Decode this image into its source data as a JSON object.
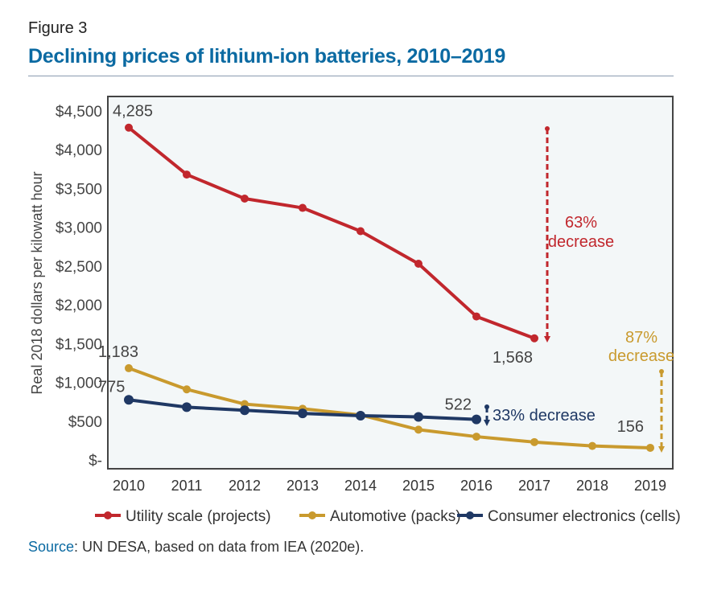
{
  "figure_label": "Figure 3",
  "title": "Declining prices of lithium-ion batteries, 2010–2019",
  "source": {
    "label": "Source",
    "text": ": UN DESA, based on data from IEA (2020e)."
  },
  "chart_data": {
    "type": "line",
    "x": [
      2010,
      2011,
      2012,
      2013,
      2014,
      2015,
      2016,
      2017,
      2018,
      2019
    ],
    "xticks": [
      "2010",
      "2011",
      "2012",
      "2013",
      "2014",
      "2015",
      "2016",
      "2017",
      "2018",
      "2019"
    ],
    "ylabel": "Real 2018 dollars per kilowatt hour",
    "ylim": [
      0,
      4500
    ],
    "yticks": [
      {
        "v": 0,
        "t": "$-"
      },
      {
        "v": 500,
        "t": "$500"
      },
      {
        "v": 1000,
        "t": "$1,000"
      },
      {
        "v": 1500,
        "t": "$1,500"
      },
      {
        "v": 2000,
        "t": "$2,000"
      },
      {
        "v": 2500,
        "t": "$2,500"
      },
      {
        "v": 3000,
        "t": "$3,000"
      },
      {
        "v": 3500,
        "t": "$3,500"
      },
      {
        "v": 4000,
        "t": "$4,000"
      },
      {
        "v": 4500,
        "t": "$4,500"
      }
    ],
    "grid": false,
    "legend_placement": "bottom",
    "series": [
      {
        "name": "Utility scale (projects)",
        "color": "#c1272d",
        "values": [
          4285,
          3680,
          3370,
          3250,
          2950,
          2530,
          1850,
          1568,
          null,
          null
        ]
      },
      {
        "name": "Automotive (packs)",
        "color": "#c99a2e",
        "values": [
          1183,
          910,
          720,
          660,
          580,
          390,
          300,
          230,
          180,
          156
        ]
      },
      {
        "name": "Consumer electronics (cells)",
        "color": "#1f3864",
        "values": [
          775,
          680,
          640,
          600,
          570,
          555,
          522,
          null,
          null,
          null
        ]
      }
    ],
    "data_labels": [
      {
        "series": 0,
        "x": 2010,
        "text": "4,285"
      },
      {
        "series": 0,
        "x": 2017,
        "text": "1,568"
      },
      {
        "series": 1,
        "x": 2010,
        "text": "1,183"
      },
      {
        "series": 1,
        "x": 2019,
        "text": "156"
      },
      {
        "series": 2,
        "x": 2010,
        "text": "775"
      },
      {
        "series": 2,
        "x": 2016,
        "text": "522"
      }
    ],
    "annotations": [
      {
        "series": 0,
        "lines": [
          "63%",
          "decrease"
        ]
      },
      {
        "series": 1,
        "lines": [
          "87%",
          "decrease"
        ]
      },
      {
        "series": 2,
        "lines": [
          "33% decrease"
        ]
      }
    ],
    "plot_background": "#f3f7f8"
  }
}
